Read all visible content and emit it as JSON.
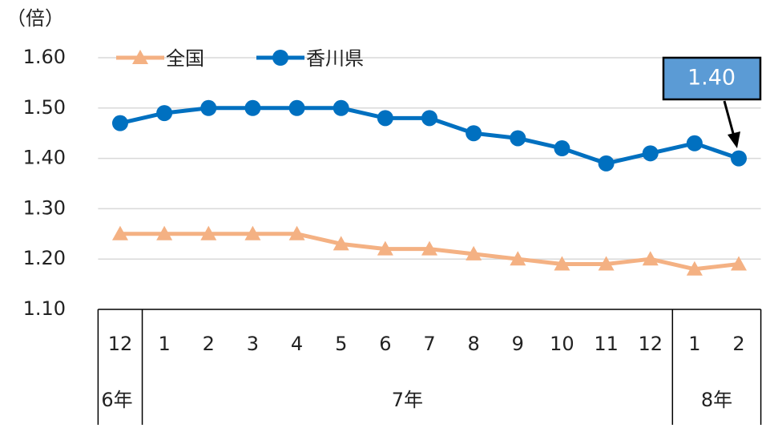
{
  "chart_data": {
    "type": "line",
    "y_axis_label": "（倍）",
    "categories": [
      "12",
      "1",
      "2",
      "3",
      "4",
      "5",
      "6",
      "7",
      "8",
      "9",
      "10",
      "11",
      "12",
      "1",
      "2"
    ],
    "years": [
      "6年",
      "7年",
      "7年",
      "7年",
      "7年",
      "7年",
      "7年",
      "7年",
      "7年",
      "7年",
      "7年",
      "7年",
      "7年",
      "8年",
      "8年"
    ],
    "series": [
      {
        "name": "全国",
        "color": "#f4b183",
        "marker": "triangle",
        "values": [
          1.25,
          1.25,
          1.25,
          1.25,
          1.25,
          1.23,
          1.22,
          1.22,
          1.21,
          1.2,
          1.19,
          1.19,
          1.2,
          1.18,
          1.19
        ]
      },
      {
        "name": "香川県",
        "color": "#0070c0",
        "marker": "circle",
        "values": [
          1.47,
          1.49,
          1.5,
          1.5,
          1.5,
          1.5,
          1.48,
          1.48,
          1.45,
          1.44,
          1.42,
          1.39,
          1.41,
          1.43,
          1.4
        ]
      }
    ],
    "annotation": {
      "text": "1.40",
      "color": "#5b9bd5"
    },
    "ylim": [
      1.1,
      1.6
    ],
    "yticks": [
      {
        "value": 1.1,
        "label": "1.10"
      },
      {
        "value": 1.2,
        "label": "1.20"
      },
      {
        "value": 1.3,
        "label": "1.30"
      },
      {
        "value": 1.4,
        "label": "1.40"
      },
      {
        "value": 1.5,
        "label": "1.50"
      },
      {
        "value": 1.6,
        "label": "1.60"
      }
    ],
    "grid": true,
    "legend": "top"
  }
}
